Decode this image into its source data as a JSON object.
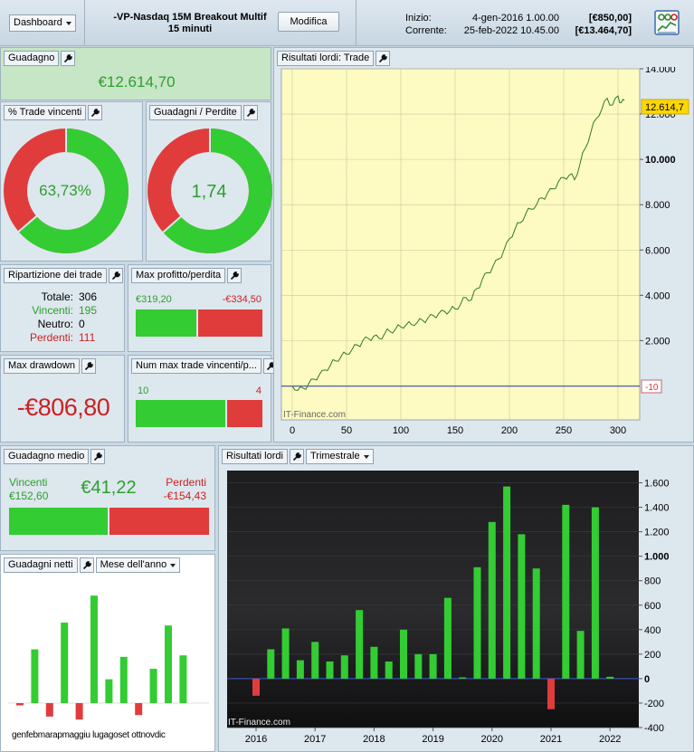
{
  "header": {
    "dashboard_label": "Dashboard",
    "strategy_name": "-VP-Nasdaq 15M Breakout Multif",
    "timeframe": "15 minuti",
    "modify_label": "Modifica",
    "start_label": "Inizio:",
    "start_date": "4-gen-2016 1.00.00",
    "start_value": "[€850,00]",
    "current_label": "Corrente:",
    "current_date": "25-feb-2022 10.45.00",
    "current_value": "[€13.464,70]",
    "report_icon": "report-icon"
  },
  "gain": {
    "title": "Guadagno",
    "value": "€12.614,70"
  },
  "win_rate": {
    "title": "% Trade vincenti",
    "value": "63,73%",
    "fraction": 0.6373,
    "colors": {
      "win": "#33cc33",
      "loss": "#e03c3c"
    }
  },
  "profit_loss_ratio": {
    "title": "Guadagni / Perdite",
    "value": "1,74",
    "fraction": 0.635
  },
  "breakdown": {
    "title": "Ripartizione dei trade",
    "total_label": "Totale:",
    "total": "306",
    "winners_label": "Vincenti:",
    "winners": "195",
    "neutral_label": "Neutro:",
    "neutral": "0",
    "losers_label": "Perdenti:",
    "losers": "111"
  },
  "max_profit_loss": {
    "title": "Max profitto/perdita",
    "profit": "€319,20",
    "loss": "-€334,50",
    "profit_value": 319.2,
    "loss_value": 334.5
  },
  "max_drawdown": {
    "title": "Max drawdown",
    "value": "-€806,80"
  },
  "max_consecutive": {
    "title": "Num max trade vincenti/p...",
    "wins": "10",
    "losses": "4",
    "wins_value": 10,
    "losses_value": 4
  },
  "avg_gain": {
    "title": "Guadagno medio",
    "winners_label": "Vincenti",
    "winners_value": "€152,60",
    "center_value": "€41,22",
    "losers_label": "Perdenti",
    "losers_value": "-€154,43",
    "win_value": 152.6,
    "loss_value": 154.43
  },
  "monthly": {
    "title": "Guadagni netti",
    "mode": "Mese dell'anno",
    "months_text": "genfebmarapmaggiu lugagoset ottnovdic"
  },
  "equity_chart_panel": {
    "title": "Risultati lordi: Trade",
    "watermark": "IT-Finance.com",
    "last_value_label": "12.614,7",
    "zero_label": "-10"
  },
  "quarterly_chart_panel": {
    "title": "Risultati lordi",
    "mode": "Trimestrale",
    "watermark": "IT-Finance.com"
  },
  "chart_data": [
    {
      "type": "line",
      "title": "Risultati lordi: Trade",
      "xlabel": "",
      "ylabel": "",
      "xlim": [
        -10,
        320
      ],
      "ylim": [
        -1500,
        14000
      ],
      "xticks": [
        0,
        50,
        100,
        150,
        200,
        250,
        300
      ],
      "yticks": [
        2000,
        4000,
        6000,
        8000,
        10000,
        12000,
        14000
      ],
      "ytick_labels": [
        "2.000",
        "4.000",
        "6.000",
        "8.000",
        "10.000",
        "12.000",
        "14.000"
      ],
      "series": [
        {
          "x": [
            0,
            5,
            10,
            15,
            20,
            25,
            30,
            35,
            40,
            45,
            50,
            55,
            60,
            65,
            70,
            75,
            80,
            85,
            90,
            95,
            100,
            105,
            110,
            115,
            120,
            125,
            130,
            135,
            140,
            145,
            150,
            155,
            160,
            165,
            170,
            175,
            180,
            185,
            190,
            195,
            200,
            205,
            210,
            215,
            220,
            225,
            230,
            235,
            240,
            245,
            250,
            255,
            260,
            265,
            270,
            275,
            280,
            285,
            290,
            295,
            300,
            303,
            306
          ],
          "y": [
            -10,
            -200,
            -100,
            100,
            300,
            500,
            700,
            900,
            1100,
            1300,
            1400,
            1600,
            1800,
            2000,
            2100,
            2200,
            2100,
            2300,
            2400,
            2500,
            2600,
            2700,
            2700,
            2800,
            2900,
            3000,
            3100,
            3200,
            3300,
            3300,
            3400,
            3600,
            3900,
            3800,
            4300,
            4700,
            5000,
            5300,
            5600,
            6000,
            6500,
            6900,
            7200,
            7600,
            7800,
            8000,
            8300,
            8500,
            8700,
            9000,
            9200,
            9300,
            9100,
            9800,
            10500,
            11200,
            11800,
            12200,
            12700,
            12400,
            12800,
            12500,
            12614.7
          ]
        }
      ]
    },
    {
      "type": "bar",
      "title": "Risultati lordi",
      "xlabel": "",
      "ylabel": "",
      "ylim": [
        -400,
        1700
      ],
      "yticks": [
        -400,
        -200,
        0,
        200,
        400,
        600,
        800,
        1000,
        1200,
        1400,
        1600
      ],
      "ytick_labels": [
        "-400",
        "-200",
        "0",
        "200",
        "400",
        "600",
        "800",
        "1.000",
        "1.200",
        "1.400",
        "1.600"
      ],
      "xtick_labels": [
        "2016",
        "2017",
        "2018",
        "2019",
        "2020",
        "2021",
        "2022"
      ],
      "categories": [
        "2016-Q1",
        "2016-Q2",
        "2016-Q3",
        "2016-Q4",
        "2017-Q1",
        "2017-Q2",
        "2017-Q3",
        "2017-Q4",
        "2018-Q1",
        "2018-Q2",
        "2018-Q3",
        "2018-Q4",
        "2019-Q1",
        "2019-Q2",
        "2019-Q3",
        "2019-Q4",
        "2020-Q1",
        "2020-Q2",
        "2020-Q3",
        "2020-Q4",
        "2021-Q1",
        "2021-Q2",
        "2021-Q3",
        "2021-Q4",
        "2022-Q1"
      ],
      "values": [
        -140,
        240,
        410,
        150,
        300,
        140,
        190,
        560,
        260,
        140,
        400,
        200,
        200,
        660,
        10,
        910,
        1280,
        1570,
        1180,
        900,
        -250,
        1420,
        390,
        1400,
        15
      ]
    },
    {
      "type": "bar",
      "title": "Guadagni netti",
      "categories": [
        "gen",
        "feb",
        "mar",
        "apr",
        "mag",
        "giu",
        "lug",
        "ago",
        "set",
        "ott",
        "nov",
        "dic"
      ],
      "values": [
        -15,
        360,
        -90,
        540,
        -110,
        720,
        160,
        310,
        -80,
        230,
        520,
        320
      ]
    }
  ]
}
